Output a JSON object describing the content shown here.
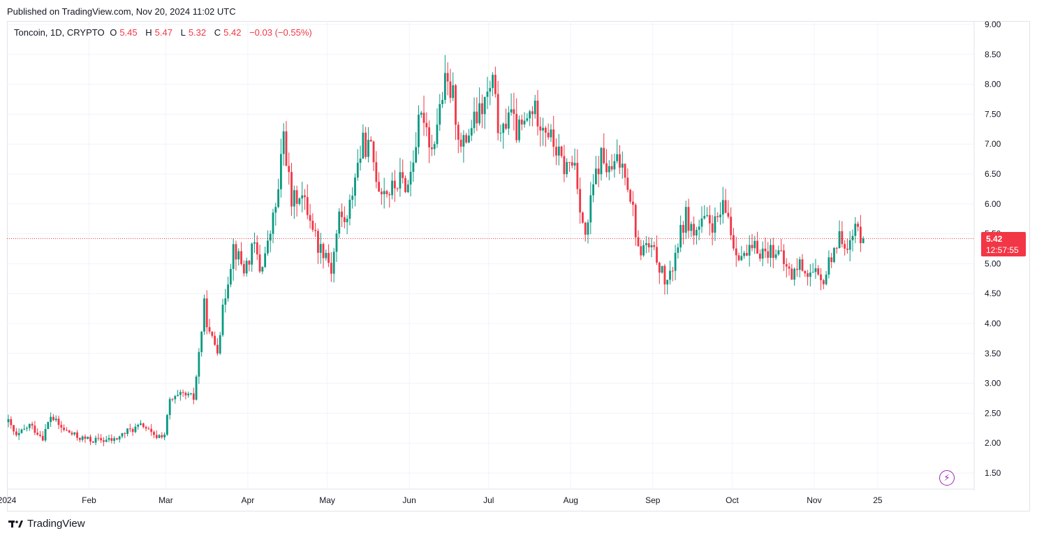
{
  "header": {
    "published": "Published on TradingView.com, Nov 20, 2024 11:02 UTC"
  },
  "legend": {
    "symbol": "Toncoin, 1D, CRYPTO",
    "open_label": "O",
    "open": "5.45",
    "high_label": "H",
    "high": "5.47",
    "low_label": "L",
    "low": "5.32",
    "close_label": "C",
    "close": "5.42",
    "change": "−0.03 (−0.55%)"
  },
  "price_badge": {
    "price": "5.42",
    "countdown": "12:57:55"
  },
  "footer": {
    "brand": "TradingView"
  },
  "colors": {
    "up": "#089981",
    "down": "#f23645",
    "grid": "#f0f3fa",
    "accent": "#9c27b0"
  },
  "icons": {
    "logo": "tradingview-logo-icon",
    "energy": "lightning-icon"
  },
  "chart_data": {
    "type": "candlestick",
    "interval": "1D",
    "ylim": [
      1.3,
      9.05
    ],
    "y_ticks": [
      1.5,
      2.0,
      2.5,
      3.0,
      3.5,
      4.0,
      4.5,
      5.0,
      5.5,
      6.0,
      6.5,
      7.0,
      7.5,
      8.0,
      8.5,
      9.0
    ],
    "y_tick_labels": [
      "1.50",
      "2.00",
      "2.50",
      "3.00",
      "3.50",
      "4.00",
      "4.50",
      "5.00",
      "5.50",
      "6.00",
      "6.50",
      "7.00",
      "7.50",
      "8.00",
      "8.50",
      "9.00"
    ],
    "x_ticks": [
      {
        "label": "2024",
        "day": 0
      },
      {
        "label": "Feb",
        "day": 31
      },
      {
        "label": "Mar",
        "day": 60
      },
      {
        "label": "Apr",
        "day": 91
      },
      {
        "label": "May",
        "day": 121
      },
      {
        "label": "Jun",
        "day": 152
      },
      {
        "label": "Jul",
        "day": 182
      },
      {
        "label": "Aug",
        "day": 213
      },
      {
        "label": "Sep",
        "day": 244
      },
      {
        "label": "Oct",
        "day": 274
      },
      {
        "label": "Nov",
        "day": 305
      },
      {
        "label": "25",
        "day": 329
      }
    ],
    "last_price": 5.42,
    "price_anchors": [
      [
        0,
        2.35
      ],
      [
        3,
        2.1
      ],
      [
        8,
        2.3
      ],
      [
        13,
        2.1
      ],
      [
        16,
        2.45
      ],
      [
        20,
        2.25
      ],
      [
        26,
        2.1
      ],
      [
        31,
        2.05
      ],
      [
        40,
        2.05
      ],
      [
        45,
        2.2
      ],
      [
        51,
        2.3
      ],
      [
        55,
        2.1
      ],
      [
        59,
        2.15
      ],
      [
        61,
        2.7
      ],
      [
        66,
        2.8
      ],
      [
        70,
        2.75
      ],
      [
        72,
        3.5
      ],
      [
        74,
        4.3
      ],
      [
        76,
        3.8
      ],
      [
        79,
        3.6
      ],
      [
        82,
        4.5
      ],
      [
        85,
        5.3
      ],
      [
        89,
        4.9
      ],
      [
        93,
        5.3
      ],
      [
        95,
        4.9
      ],
      [
        98,
        5.3
      ],
      [
        102,
        6.2
      ],
      [
        104,
        7.2
      ],
      [
        107,
        6.0
      ],
      [
        110,
        6.2
      ],
      [
        114,
        5.8
      ],
      [
        117,
        5.3
      ],
      [
        120,
        5.2
      ],
      [
        122,
        4.9
      ],
      [
        125,
        5.8
      ],
      [
        128,
        5.7
      ],
      [
        131,
        6.5
      ],
      [
        134,
        7.0
      ],
      [
        137,
        6.9
      ],
      [
        140,
        6.3
      ],
      [
        144,
        6.2
      ],
      [
        148,
        6.4
      ],
      [
        151,
        6.3
      ],
      [
        155,
        7.3
      ],
      [
        157,
        7.5
      ],
      [
        160,
        6.9
      ],
      [
        163,
        7.6
      ],
      [
        165,
        8.0
      ],
      [
        168,
        7.8
      ],
      [
        171,
        6.9
      ],
      [
        175,
        7.3
      ],
      [
        178,
        7.5
      ],
      [
        181,
        7.8
      ],
      [
        183,
        8.0
      ],
      [
        186,
        7.0
      ],
      [
        189,
        7.6
      ],
      [
        192,
        7.2
      ],
      [
        195,
        7.3
      ],
      [
        198,
        7.6
      ],
      [
        203,
        7.3
      ],
      [
        207,
        6.9
      ],
      [
        210,
        6.6
      ],
      [
        214,
        6.7
      ],
      [
        216,
        6.0
      ],
      [
        218,
        5.4
      ],
      [
        221,
        6.3
      ],
      [
        224,
        6.8
      ],
      [
        227,
        6.5
      ],
      [
        230,
        6.7
      ],
      [
        233,
        6.6
      ],
      [
        236,
        5.9
      ],
      [
        238,
        5.2
      ],
      [
        241,
        5.3
      ],
      [
        245,
        5.1
      ],
      [
        248,
        4.7
      ],
      [
        250,
        4.75
      ],
      [
        252,
        5.2
      ],
      [
        256,
        5.8
      ],
      [
        259,
        5.5
      ],
      [
        263,
        5.7
      ],
      [
        267,
        5.65
      ],
      [
        270,
        5.9
      ],
      [
        272,
        5.8
      ],
      [
        274,
        5.3
      ],
      [
        278,
        5.1
      ],
      [
        282,
        5.25
      ],
      [
        286,
        5.2
      ],
      [
        290,
        5.25
      ],
      [
        293,
        5.0
      ],
      [
        296,
        4.8
      ],
      [
        299,
        5.0
      ],
      [
        302,
        4.85
      ],
      [
        305,
        4.8
      ],
      [
        307,
        4.65
      ],
      [
        309,
        4.85
      ],
      [
        312,
        5.3
      ],
      [
        315,
        5.45
      ],
      [
        318,
        5.3
      ],
      [
        320,
        5.6
      ],
      [
        323,
        5.42
      ]
    ]
  }
}
